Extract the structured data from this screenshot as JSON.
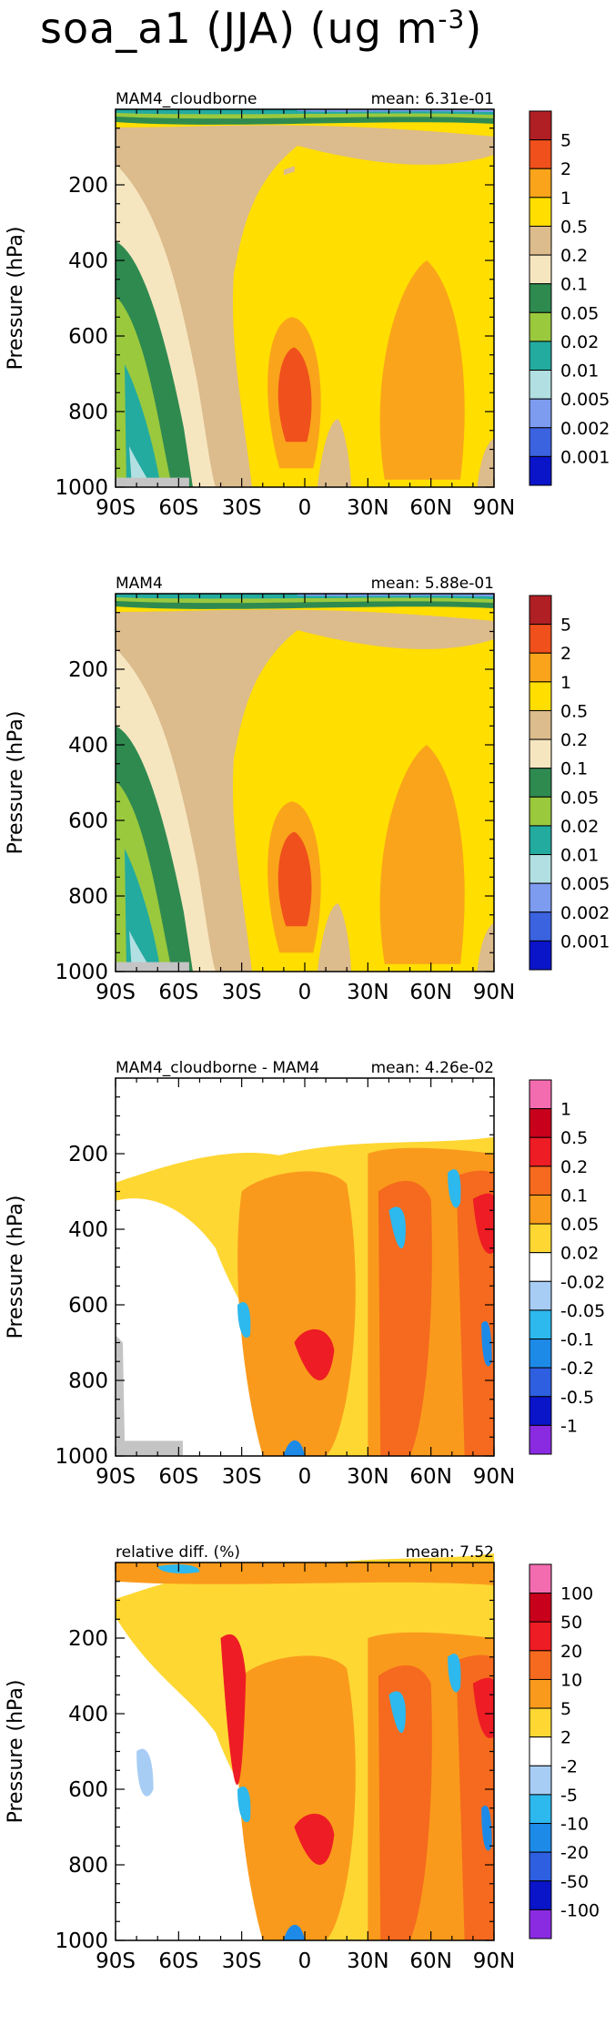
{
  "title": {
    "var": "soa_a1 (JJA) (ug m",
    "unit_exp": "-3",
    "close": ")"
  },
  "chart_data": [
    {
      "type": "heatmap",
      "panel": "MAM4_cloudborne",
      "mean_label": "mean:  6.31e-01",
      "ylabel": "Pressure  (hPa)",
      "xticks": [
        "90S",
        "60S",
        "30S",
        "0",
        "30N",
        "60N",
        "90N"
      ],
      "yticks": [
        "200",
        "400",
        "600",
        "800",
        "1000"
      ],
      "ylim": [
        1000,
        0
      ],
      "colorbar": {
        "labels": [
          "5",
          "2",
          "1",
          "0.5",
          "0.2",
          "0.1",
          "0.05",
          "0.02",
          "0.01",
          "0.005",
          "0.002",
          "0.001"
        ],
        "colors": [
          "#b01f24",
          "#f0501c",
          "#faa41b",
          "#ffde00",
          "#dcbb8c",
          "#f6e6c0",
          "#2f8a50",
          "#9ac93e",
          "#23aba0",
          "#b2e0e2",
          "#7d9cf0",
          "#3b63e0",
          "#0a14c8"
        ]
      }
    },
    {
      "type": "heatmap",
      "panel": "MAM4",
      "mean_label": "mean:  5.88e-01",
      "ylabel": "Pressure  (hPa)",
      "xticks": [
        "90S",
        "60S",
        "30S",
        "0",
        "30N",
        "60N",
        "90N"
      ],
      "yticks": [
        "200",
        "400",
        "600",
        "800",
        "1000"
      ],
      "ylim": [
        1000,
        0
      ],
      "colorbar": {
        "labels": [
          "5",
          "2",
          "1",
          "0.5",
          "0.2",
          "0.1",
          "0.05",
          "0.02",
          "0.01",
          "0.005",
          "0.002",
          "0.001"
        ],
        "colors": [
          "#b01f24",
          "#f0501c",
          "#faa41b",
          "#ffde00",
          "#dcbb8c",
          "#f6e6c0",
          "#2f8a50",
          "#9ac93e",
          "#23aba0",
          "#b2e0e2",
          "#7d9cf0",
          "#3b63e0",
          "#0a14c8"
        ]
      }
    },
    {
      "type": "heatmap",
      "panel": "MAM4_cloudborne - MAM4",
      "mean_label": "mean:  4.26e-02",
      "ylabel": "Pressure  (hPa)",
      "xticks": [
        "90S",
        "60S",
        "30S",
        "0",
        "30N",
        "60N",
        "90N"
      ],
      "yticks": [
        "200",
        "400",
        "600",
        "800",
        "1000"
      ],
      "ylim": [
        1000,
        0
      ],
      "colorbar": {
        "labels": [
          "1",
          "0.5",
          "0.2",
          "0.1",
          "0.05",
          "0.02",
          "-0.02",
          "-0.05",
          "-0.1",
          "-0.2",
          "-0.5",
          "-1"
        ],
        "colors": [
          "#f46cb0",
          "#c8001c",
          "#ee1c24",
          "#f56a1e",
          "#fa9a1c",
          "#ffd733",
          "#ffffff",
          "#a7cdf5",
          "#2db8ee",
          "#1e8ae8",
          "#2e5fe0",
          "#0a14c8",
          "#8a2be2"
        ]
      }
    },
    {
      "type": "heatmap",
      "panel": "relative diff. (%)",
      "mean_label": "mean:    7.52",
      "ylabel": "Pressure  (hPa)",
      "xticks": [
        "90S",
        "60S",
        "30S",
        "0",
        "30N",
        "60N",
        "90N"
      ],
      "yticks": [
        "200",
        "400",
        "600",
        "800",
        "1000"
      ],
      "ylim": [
        1000,
        0
      ],
      "colorbar": {
        "labels": [
          "100",
          "50",
          "20",
          "10",
          "5",
          "2",
          "-2",
          "-5",
          "-10",
          "-20",
          "-50",
          "-100"
        ],
        "colors": [
          "#f46cb0",
          "#c8001c",
          "#ee1c24",
          "#f56a1e",
          "#fa9a1c",
          "#ffd733",
          "#ffffff",
          "#a7cdf5",
          "#2db8ee",
          "#1e8ae8",
          "#2e5fe0",
          "#0a14c8",
          "#8a2be2"
        ]
      }
    }
  ]
}
